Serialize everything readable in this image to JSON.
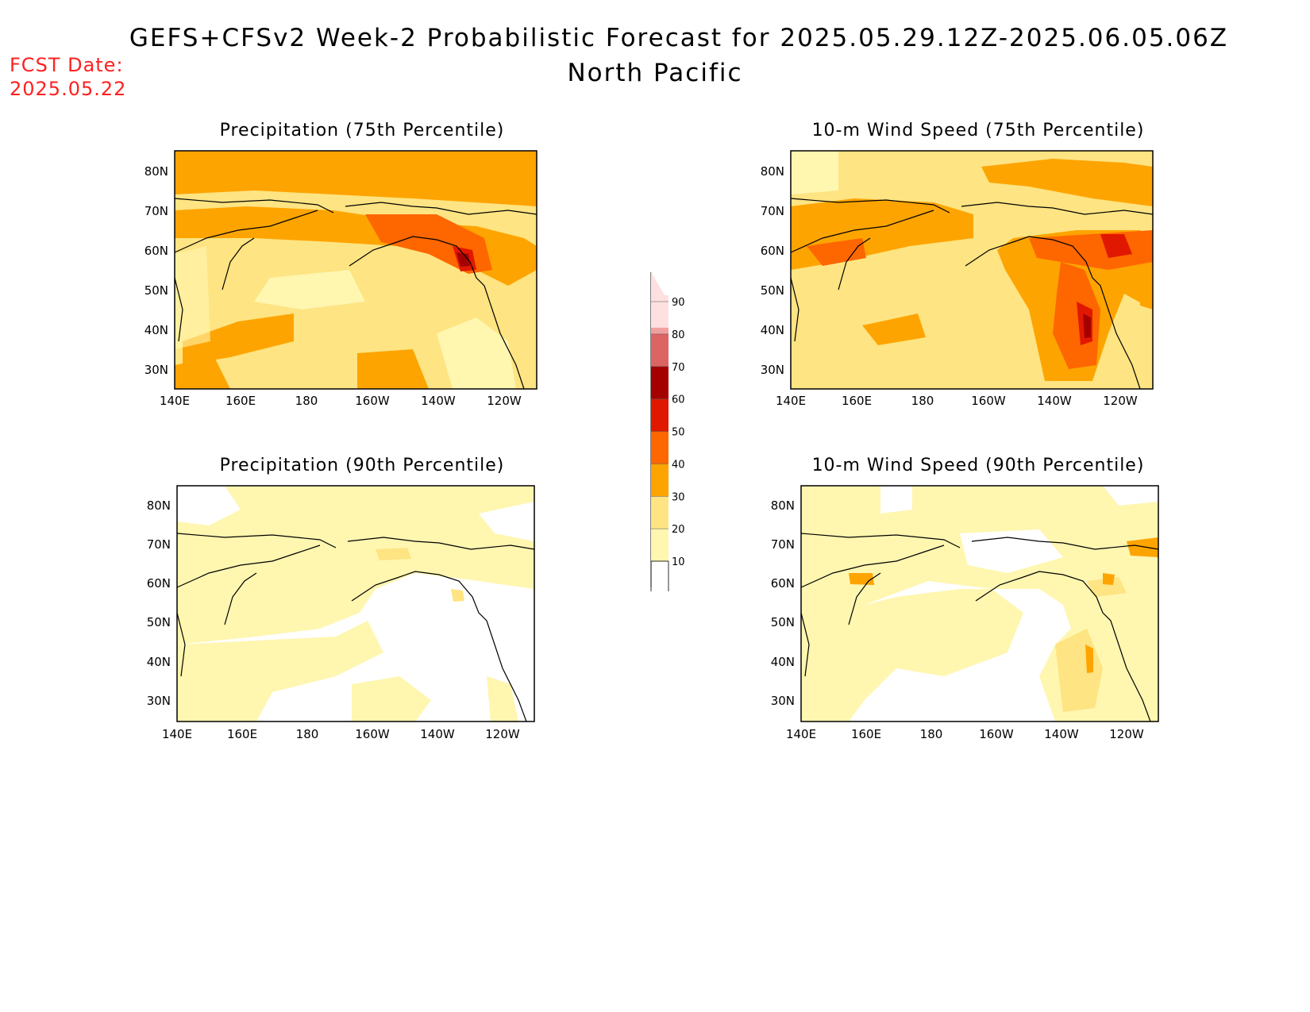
{
  "header": {
    "title": "GEFS+CFSv2 Week-2 Probabilistic Forecast for 2025.05.29.12Z-2025.06.05.06Z",
    "subtitle": "North Pacific",
    "fcst_label": "FCST Date:",
    "fcst_date": "2025.05.22"
  },
  "panels": [
    {
      "title": "Precipitation (75th Percentile)",
      "variable": "precipitation",
      "percentile": 75,
      "dominant_level": "20-30"
    },
    {
      "title": "10-m Wind Speed (75th Percentile)",
      "variable": "wind",
      "percentile": 75,
      "dominant_level": "20-30"
    },
    {
      "title": "Precipitation (90th Percentile)",
      "variable": "precipitation",
      "percentile": 90,
      "dominant_level": "10-20"
    },
    {
      "title": "10-m Wind Speed (90th Percentile)",
      "variable": "wind",
      "percentile": 90,
      "dominant_level": "10-20"
    }
  ],
  "axes": {
    "lat_labels": [
      "80N",
      "70N",
      "60N",
      "50N",
      "40N",
      "30N"
    ],
    "lon_labels": [
      "140E",
      "160E",
      "180",
      "160W",
      "140W",
      "120W"
    ]
  },
  "colorbar": {
    "levels": [
      "10",
      "20",
      "30",
      "40",
      "50",
      "60",
      "70",
      "80",
      "90"
    ],
    "colors": [
      "#fff6b0",
      "#fee482",
      "#fea400",
      "#fe6600",
      "#e11800",
      "#a50000",
      "#dc6462",
      "#f0a0a0",
      "#fee0e0"
    ]
  }
}
